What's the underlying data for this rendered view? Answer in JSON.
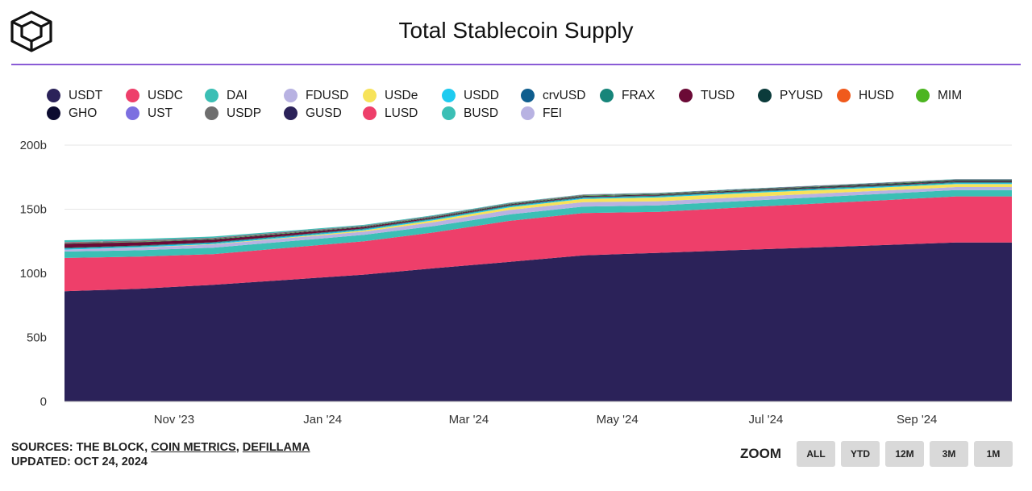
{
  "header": {
    "title": "Total Stablecoin Supply",
    "logo_icon": "the-block-cube-logo"
  },
  "legend": [
    {
      "label": "USDT",
      "color": "#2b2259"
    },
    {
      "label": "USDC",
      "color": "#ee3f6a"
    },
    {
      "label": "DAI",
      "color": "#3bbfb5"
    },
    {
      "label": "FDUSD",
      "color": "#b8b2e2"
    },
    {
      "label": "USDe",
      "color": "#f7e35a"
    },
    {
      "label": "USDD",
      "color": "#1ecbf0"
    },
    {
      "label": "crvUSD",
      "color": "#0f5e8e"
    },
    {
      "label": "FRAX",
      "color": "#17857a"
    },
    {
      "label": "TUSD",
      "color": "#6b0a36"
    },
    {
      "label": "PYUSD",
      "color": "#0b3b3b"
    },
    {
      "label": "HUSD",
      "color": "#f05a1c"
    },
    {
      "label": "MIM",
      "color": "#4cb521"
    },
    {
      "label": "GHO",
      "color": "#0c0b30"
    },
    {
      "label": "UST",
      "color": "#7c6fe0"
    },
    {
      "label": "USDP",
      "color": "#6e6e6e"
    },
    {
      "label": "GUSD",
      "color": "#2b2259"
    },
    {
      "label": "LUSD",
      "color": "#ee3f6a"
    },
    {
      "label": "BUSD",
      "color": "#3bbfb5"
    },
    {
      "label": "FEI",
      "color": "#b8b2e2"
    }
  ],
  "chart_data": {
    "type": "area",
    "stacked": true,
    "title": "Total Stablecoin Supply",
    "xlabel": "",
    "ylabel": "",
    "x_ticks": [
      "Nov '23",
      "Jan '24",
      "Mar '24",
      "May '24",
      "Jul '24",
      "Sep '24"
    ],
    "y_ticks": [
      "0",
      "50b",
      "100b",
      "150b",
      "200b"
    ],
    "ylim": [
      0,
      200
    ],
    "grid": true,
    "x": [
      "2023-10-01",
      "2023-11-01",
      "2023-12-01",
      "2024-01-01",
      "2024-02-01",
      "2024-03-01",
      "2024-04-01",
      "2024-05-01",
      "2024-06-01",
      "2024-07-01",
      "2024-08-01",
      "2024-09-01",
      "2024-10-01",
      "2024-10-24"
    ],
    "series": [
      {
        "name": "USDT",
        "values": [
          86,
          88,
          91,
          95,
          99,
          104,
          109,
          114,
          116,
          118,
          120,
          122,
          124,
          124
        ]
      },
      {
        "name": "USDC",
        "values": [
          26,
          25,
          24,
          25,
          26,
          28,
          32,
          33,
          32,
          33,
          34,
          35,
          36,
          36
        ]
      },
      {
        "name": "DAI",
        "values": [
          5,
          5,
          5,
          5,
          5,
          5,
          5,
          5,
          5,
          5,
          5,
          5,
          5,
          5
        ]
      },
      {
        "name": "FDUSD",
        "values": [
          1.5,
          2,
          2.5,
          2.5,
          2.5,
          3,
          3.5,
          3.5,
          3.2,
          3,
          2.8,
          2.5,
          2.3,
          2.3
        ]
      },
      {
        "name": "USDe",
        "values": [
          0,
          0.2,
          0.3,
          0.5,
          1,
          1.5,
          2,
          2.5,
          3,
          3,
          2.8,
          2.5,
          2.4,
          2.4
        ]
      },
      {
        "name": "USDD",
        "values": [
          0.7,
          0.7,
          0.7,
          0.7,
          0.7,
          0.7,
          0.7,
          0.7,
          0.7,
          0.7,
          0.7,
          0.7,
          0.7,
          0.7
        ]
      },
      {
        "name": "crvUSD",
        "values": [
          0.2,
          0.2,
          0.2,
          0.2,
          0.2,
          0.2,
          0.2,
          0.2,
          0.2,
          0.2,
          0.2,
          0.2,
          0.2,
          0.2
        ]
      },
      {
        "name": "FRAX",
        "values": [
          0.6,
          0.6,
          0.6,
          0.6,
          0.6,
          0.6,
          0.6,
          0.6,
          0.6,
          0.6,
          0.6,
          0.6,
          0.6,
          0.6
        ]
      },
      {
        "name": "TUSD",
        "values": [
          3,
          2.5,
          2,
          1.5,
          1,
          0.7,
          0.5,
          0.5,
          0.5,
          0.5,
          0.5,
          0.5,
          0.5,
          0.5
        ]
      },
      {
        "name": "PYUSD",
        "values": [
          0.1,
          0.2,
          0.3,
          0.3,
          0.3,
          0.3,
          0.4,
          0.4,
          0.4,
          0.4,
          0.5,
          0.6,
          0.6,
          0.6
        ]
      },
      {
        "name": "HUSD",
        "values": [
          0,
          0,
          0,
          0,
          0,
          0,
          0,
          0,
          0,
          0,
          0,
          0,
          0,
          0
        ]
      },
      {
        "name": "MIM",
        "values": [
          0.2,
          0.2,
          0.2,
          0.2,
          0.2,
          0.2,
          0.2,
          0.2,
          0.2,
          0.2,
          0.2,
          0.2,
          0.2,
          0.2
        ]
      },
      {
        "name": "GHO",
        "values": [
          0.1,
          0.1,
          0.1,
          0.1,
          0.1,
          0.1,
          0.1,
          0.1,
          0.1,
          0.1,
          0.1,
          0.2,
          0.2,
          0.2
        ]
      },
      {
        "name": "UST",
        "values": [
          0,
          0,
          0,
          0,
          0,
          0,
          0,
          0,
          0,
          0,
          0,
          0,
          0,
          0
        ]
      },
      {
        "name": "USDP",
        "values": [
          0.5,
          0.5,
          0.4,
          0.4,
          0.3,
          0.3,
          0.3,
          0.3,
          0.3,
          0.3,
          0.3,
          0.3,
          0.3,
          0.3
        ]
      },
      {
        "name": "GUSD",
        "values": [
          0.2,
          0.2,
          0.2,
          0.2,
          0.2,
          0.2,
          0.2,
          0.2,
          0.2,
          0.2,
          0.2,
          0.2,
          0.2,
          0.2
        ]
      },
      {
        "name": "LUSD",
        "values": [
          0.2,
          0.2,
          0.2,
          0.2,
          0.1,
          0.1,
          0.1,
          0.1,
          0.1,
          0.1,
          0.1,
          0.1,
          0.1,
          0.1
        ]
      },
      {
        "name": "BUSD",
        "values": [
          1.5,
          1.2,
          1,
          0.8,
          0.6,
          0.5,
          0.4,
          0.3,
          0.3,
          0.2,
          0.2,
          0.2,
          0.2,
          0.2
        ]
      },
      {
        "name": "FEI",
        "values": [
          0,
          0,
          0,
          0,
          0,
          0,
          0,
          0,
          0,
          0,
          0,
          0,
          0,
          0
        ]
      }
    ]
  },
  "footer": {
    "sources_prefix": "SOURCES: THE BLOCK, ",
    "source_coin_metrics": "COIN METRICS",
    "source_sep": ", ",
    "source_defillama": "DEFILLAMA",
    "updated": "UPDATED: OCT 24, 2024"
  },
  "zoom": {
    "label": "ZOOM",
    "buttons": [
      "ALL",
      "YTD",
      "12M",
      "3M",
      "1M"
    ]
  }
}
